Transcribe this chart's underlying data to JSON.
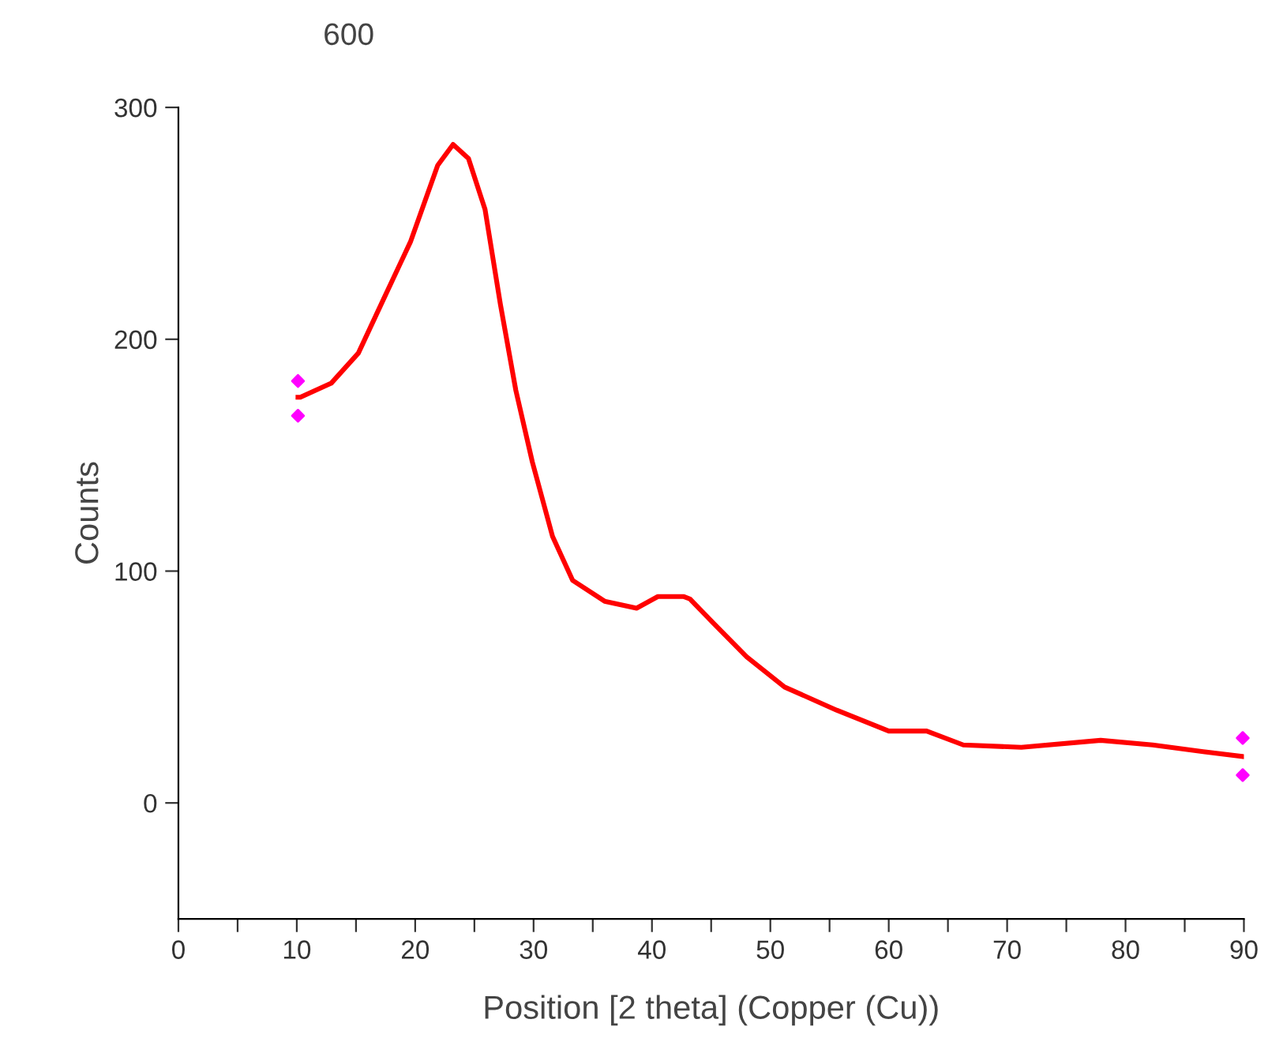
{
  "chart_data": {
    "type": "line",
    "title": "600",
    "xlabel": "Position [2 theta] (Copper (Cu))",
    "ylabel": "Counts",
    "xlim": [
      0,
      90
    ],
    "ylim": [
      -50,
      300
    ],
    "xticks": [
      0,
      {
        "value": 5,
        "label": null
      },
      10,
      {
        "value": 15,
        "label": null
      },
      20,
      {
        "value": 25,
        "label": null
      },
      30,
      {
        "value": 35,
        "label": null
      },
      40,
      {
        "value": 45,
        "label": null
      },
      50,
      {
        "value": 55,
        "label": null
      },
      60,
      {
        "value": 65,
        "label": null
      },
      70,
      {
        "value": 75,
        "label": null
      },
      80,
      {
        "value": 85,
        "label": null
      },
      90
    ],
    "yticks": [
      0,
      100,
      200,
      300
    ],
    "grid": false,
    "legend": false,
    "series": [
      {
        "color": "#ff0000",
        "marker": "none",
        "line_style": "solid",
        "x": [
          10.1,
          10.3,
          12.9,
          15.2,
          17.3,
          19.6,
          21.9,
          23.2,
          24.5,
          25.9,
          27.2,
          28.5,
          29.9,
          31.6,
          33.3,
          36,
          38.7,
          40.5,
          42.7,
          43.2,
          45.3,
          48,
          51.2,
          55.6,
          60,
          63.2,
          66.3,
          71.2,
          77.9,
          82.3,
          86.7,
          89.9
        ],
        "values": [
          175,
          175,
          181,
          194,
          217,
          242,
          275,
          284,
          278,
          256,
          215,
          178,
          147,
          115,
          96,
          87,
          84,
          89,
          89,
          88,
          77,
          63,
          50,
          40,
          31,
          31,
          25,
          24,
          27,
          25,
          22,
          20
        ]
      },
      {
        "type": "scatter",
        "color": "#ff00ff",
        "marker": "diamond",
        "x": [
          10.1,
          10.1,
          89.9,
          89.9
        ],
        "values": [
          182,
          167,
          28,
          12
        ]
      }
    ]
  }
}
